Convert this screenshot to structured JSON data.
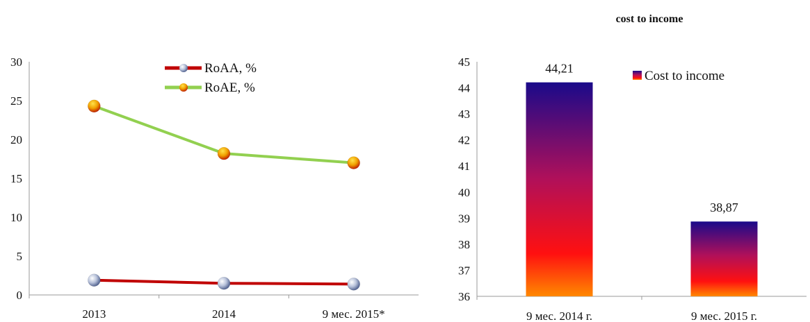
{
  "chart_data": [
    {
      "type": "line",
      "title": "",
      "xlabel": "",
      "ylabel": "",
      "categories": [
        "2013",
        "2014",
        "9 мес. 2015*"
      ],
      "ylim": [
        0,
        30
      ],
      "yticks": [
        0,
        5,
        10,
        15,
        20,
        25,
        30
      ],
      "grid": false,
      "legend_position": "top-center",
      "series": [
        {
          "name": "RoAA, %",
          "values": [
            1.9,
            1.5,
            1.4
          ],
          "color": "#c00000",
          "marker_color": "#9aa7c4"
        },
        {
          "name": "RoAE, %",
          "values": [
            24.3,
            18.2,
            17.0
          ],
          "color": "#92d050",
          "marker_color": "#e8a000"
        }
      ]
    },
    {
      "type": "bar",
      "title": "cost to income",
      "xlabel": "",
      "ylabel": "",
      "categories": [
        "9 мес. 2014 г.",
        "9 мес. 2015 г."
      ],
      "ylim": [
        36,
        45
      ],
      "yticks": [
        36,
        37,
        38,
        39,
        40,
        41,
        42,
        43,
        44,
        45
      ],
      "grid": false,
      "legend_position": "top-right",
      "series": [
        {
          "name": "Cost to income",
          "values": [
            44.21,
            38.87
          ],
          "data_labels": [
            "44,21",
            "38,87"
          ]
        }
      ],
      "colors": {
        "top": "#1a0a8a",
        "mid": "#b0105a",
        "low": "#ff1010",
        "bottom": "#ff8800"
      }
    }
  ]
}
